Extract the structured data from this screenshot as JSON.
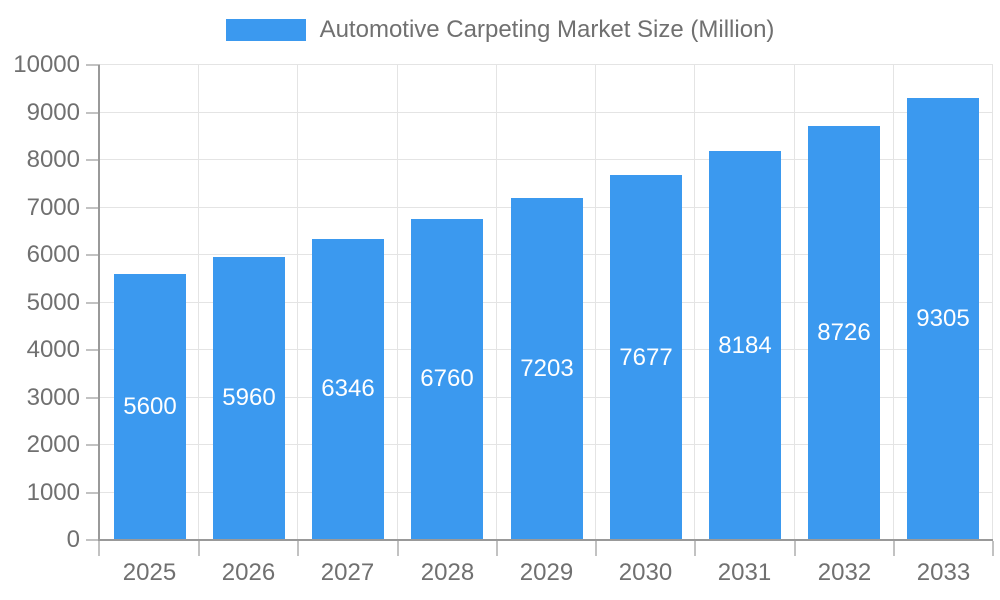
{
  "legend": {
    "label": "Automotive Carpeting Market Size (Million)"
  },
  "colors": {
    "bar": "#3B99EF",
    "grid": "#E4E4E4",
    "axis": "#999999",
    "tick": "#C2C2C2",
    "text": "#707070",
    "bar_label": "#FFFFFF",
    "background": "#FFFFFF"
  },
  "chart_data": {
    "type": "bar",
    "title": "Automotive Carpeting Market Size (Million)",
    "categories": [
      "2025",
      "2026",
      "2027",
      "2028",
      "2029",
      "2030",
      "2031",
      "2032",
      "2033"
    ],
    "values": [
      5600,
      5960,
      6346,
      6760,
      7203,
      7677,
      8184,
      8726,
      9305
    ],
    "xlabel": "",
    "ylabel": "",
    "ylim": [
      0,
      10000
    ],
    "ytick_step": 1000,
    "yticks": [
      0,
      1000,
      2000,
      3000,
      4000,
      5000,
      6000,
      7000,
      8000,
      9000,
      10000
    ],
    "grid": true,
    "legend_position": "top",
    "bar_label_position": "inside-center"
  }
}
